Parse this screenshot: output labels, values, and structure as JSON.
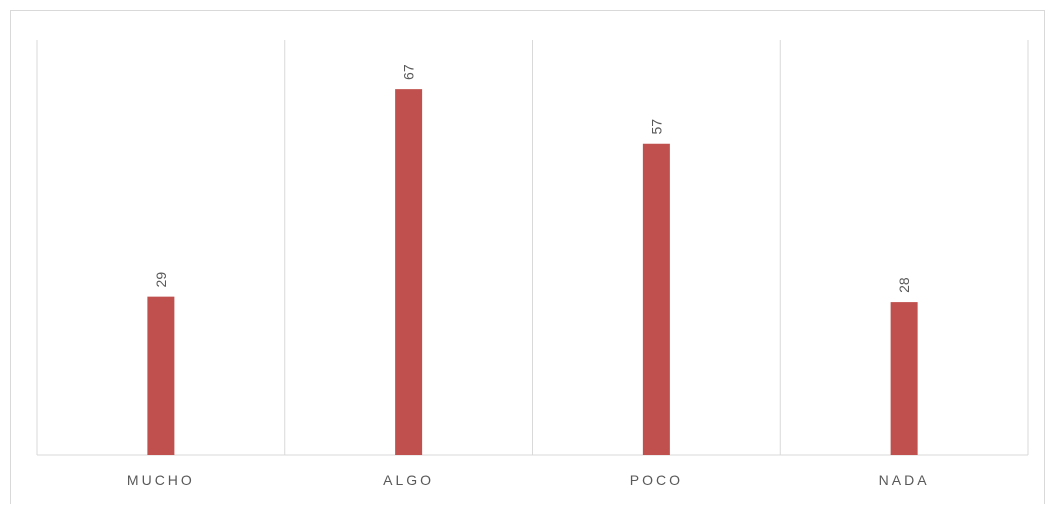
{
  "chart_data": {
    "type": "bar",
    "categories": [
      "MUCHO",
      "ALGO",
      "POCO",
      "NADA"
    ],
    "values": [
      29,
      67,
      57,
      28
    ],
    "title": "",
    "xlabel": "",
    "ylabel": "",
    "ylim": [
      0,
      76
    ],
    "grid": "vertical category separators",
    "legend": "none",
    "data_labels": true,
    "bar_color": "#c0504d"
  }
}
